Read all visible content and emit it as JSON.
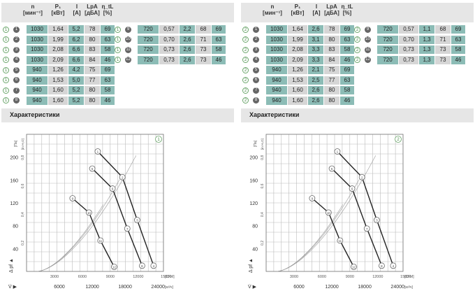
{
  "header": {
    "n": "n",
    "n_unit": "[мин⁻¹]",
    "p1": "P₁",
    "p1_unit": "[кВт]",
    "i": "I",
    "i_unit": "[A]",
    "lpa": "LpA",
    "lpa_unit": "[дБА]",
    "eta": "η_tL",
    "eta_unit": "[%]"
  },
  "section_title": "Характеристики",
  "chart_axes": {
    "y_axis_label": "[Па]",
    "p_label": "[in H₂O]",
    "pf_label": "Δ pf ▲",
    "x_axis_symbol": "V̇ ▶",
    "cfm_unit": "[CFM]",
    "m3h_unit": "[м³/ч]"
  },
  "panels": [
    {
      "id": "1",
      "rows_left": [
        {
          "id": "1",
          "n": "1030",
          "p": "1,64",
          "i": "5,2",
          "lpa": "78",
          "eta": "69"
        },
        {
          "id": "2",
          "n": "1030",
          "p": "1,99",
          "i": "6,2",
          "lpa": "80",
          "eta": "63"
        },
        {
          "id": "3",
          "n": "1030",
          "p": "2,08",
          "i": "6,6",
          "lpa": "83",
          "eta": "58"
        },
        {
          "id": "4",
          "n": "1030",
          "p": "2,09",
          "i": "6,6",
          "lpa": "84",
          "eta": "46"
        },
        {
          "id": "5",
          "n": "940",
          "p": "1,26",
          "i": "4,2",
          "lpa": "75",
          "eta": "69"
        },
        {
          "id": "6",
          "n": "940",
          "p": "1,53",
          "i": "5,0",
          "lpa": "77",
          "eta": "63"
        },
        {
          "id": "7",
          "n": "940",
          "p": "1,60",
          "i": "5,2",
          "lpa": "80",
          "eta": "58"
        },
        {
          "id": "8",
          "n": "940",
          "p": "1,60",
          "i": "5,2",
          "lpa": "80",
          "eta": "46"
        }
      ],
      "rows_right": [
        {
          "id": "9",
          "n": "720",
          "p": "0,57",
          "i": "2,2",
          "lpa": "68",
          "eta": "69"
        },
        {
          "id": "10",
          "n": "720",
          "p": "0,70",
          "i": "2,6",
          "lpa": "71",
          "eta": "63"
        },
        {
          "id": "11",
          "n": "720",
          "p": "0,73",
          "i": "2,6",
          "lpa": "73",
          "eta": "58"
        },
        {
          "id": "12",
          "n": "720",
          "p": "0,73",
          "i": "2,6",
          "lpa": "73",
          "eta": "46"
        }
      ]
    },
    {
      "id": "2",
      "rows_left": [
        {
          "id": "1",
          "n": "1030",
          "p": "1,64",
          "i": "2,6",
          "lpa": "78",
          "eta": "69"
        },
        {
          "id": "2",
          "n": "1030",
          "p": "1,99",
          "i": "3,1",
          "lpa": "80",
          "eta": "63"
        },
        {
          "id": "3",
          "n": "1030",
          "p": "2,08",
          "i": "3,3",
          "lpa": "83",
          "eta": "58"
        },
        {
          "id": "4",
          "n": "1030",
          "p": "2,09",
          "i": "3,3",
          "lpa": "84",
          "eta": "46"
        },
        {
          "id": "5",
          "n": "940",
          "p": "1,26",
          "i": "2,1",
          "lpa": "75",
          "eta": "69"
        },
        {
          "id": "6",
          "n": "940",
          "p": "1,53",
          "i": "2,5",
          "lpa": "77",
          "eta": "63"
        },
        {
          "id": "7",
          "n": "940",
          "p": "1,60",
          "i": "2,6",
          "lpa": "80",
          "eta": "58"
        },
        {
          "id": "8",
          "n": "940",
          "p": "1,60",
          "i": "2,6",
          "lpa": "80",
          "eta": "46"
        }
      ],
      "rows_right": [
        {
          "id": "9",
          "n": "720",
          "p": "0,57",
          "i": "1,1",
          "lpa": "68",
          "eta": "69"
        },
        {
          "id": "10",
          "n": "720",
          "p": "0,70",
          "i": "1,3",
          "lpa": "71",
          "eta": "63"
        },
        {
          "id": "11",
          "n": "720",
          "p": "0,73",
          "i": "1,3",
          "lpa": "73",
          "eta": "58"
        },
        {
          "id": "12",
          "n": "720",
          "p": "0,73",
          "i": "1,3",
          "lpa": "73",
          "eta": "46"
        }
      ]
    }
  ],
  "chart_data": [
    {
      "type": "line",
      "title": "1",
      "xlabel": "V̇ [м³/ч]",
      "ylabel": "Δpf [Па]",
      "xlim": [
        0,
        25000
      ],
      "ylim": [
        0,
        240
      ],
      "x_ticks": [
        6000,
        12000,
        18000,
        24000
      ],
      "x_ticks_cfm": [
        3000,
        6000,
        9000,
        12000,
        15000
      ],
      "y_ticks": [
        40,
        80,
        120,
        160,
        200
      ],
      "y_ticks_inh2o": [
        "0,2",
        "0,4",
        "0,6",
        "0,8"
      ],
      "series": [
        {
          "values": [
            [
              13000,
              210
            ],
            [
              17500,
              165
            ],
            [
              20200,
              90
            ],
            [
              23200,
              10
            ]
          ]
        },
        {
          "values": [
            [
              12000,
              180
            ],
            [
              15700,
              145
            ],
            [
              18400,
              75
            ],
            [
              21100,
              10
            ]
          ]
        },
        {
          "values": [
            [
              8400,
              128
            ],
            [
              11400,
              103
            ],
            [
              13500,
              54
            ],
            [
              16000,
              8
            ]
          ]
        }
      ]
    },
    {
      "type": "line",
      "title": "2",
      "xlabel": "V̇ [м³/ч]",
      "ylabel": "Δpf [Па]",
      "xlim": [
        0,
        25000
      ],
      "ylim": [
        0,
        240
      ],
      "x_ticks": [
        6000,
        12000,
        18000,
        24000
      ],
      "x_ticks_cfm": [
        3000,
        6000,
        9000,
        12000,
        15000
      ],
      "y_ticks": [
        40,
        80,
        120,
        160,
        200
      ],
      "y_ticks_inh2o": [
        "0,2",
        "0,4",
        "0,6",
        "0,8"
      ],
      "series": [
        {
          "values": [
            [
              13000,
              210
            ],
            [
              17500,
              165
            ],
            [
              20200,
              90
            ],
            [
              23200,
              10
            ]
          ]
        },
        {
          "values": [
            [
              12000,
              180
            ],
            [
              15700,
              145
            ],
            [
              18400,
              75
            ],
            [
              21100,
              10
            ]
          ]
        },
        {
          "values": [
            [
              8400,
              128
            ],
            [
              11400,
              103
            ],
            [
              13500,
              54
            ],
            [
              16000,
              8
            ]
          ]
        }
      ]
    }
  ]
}
